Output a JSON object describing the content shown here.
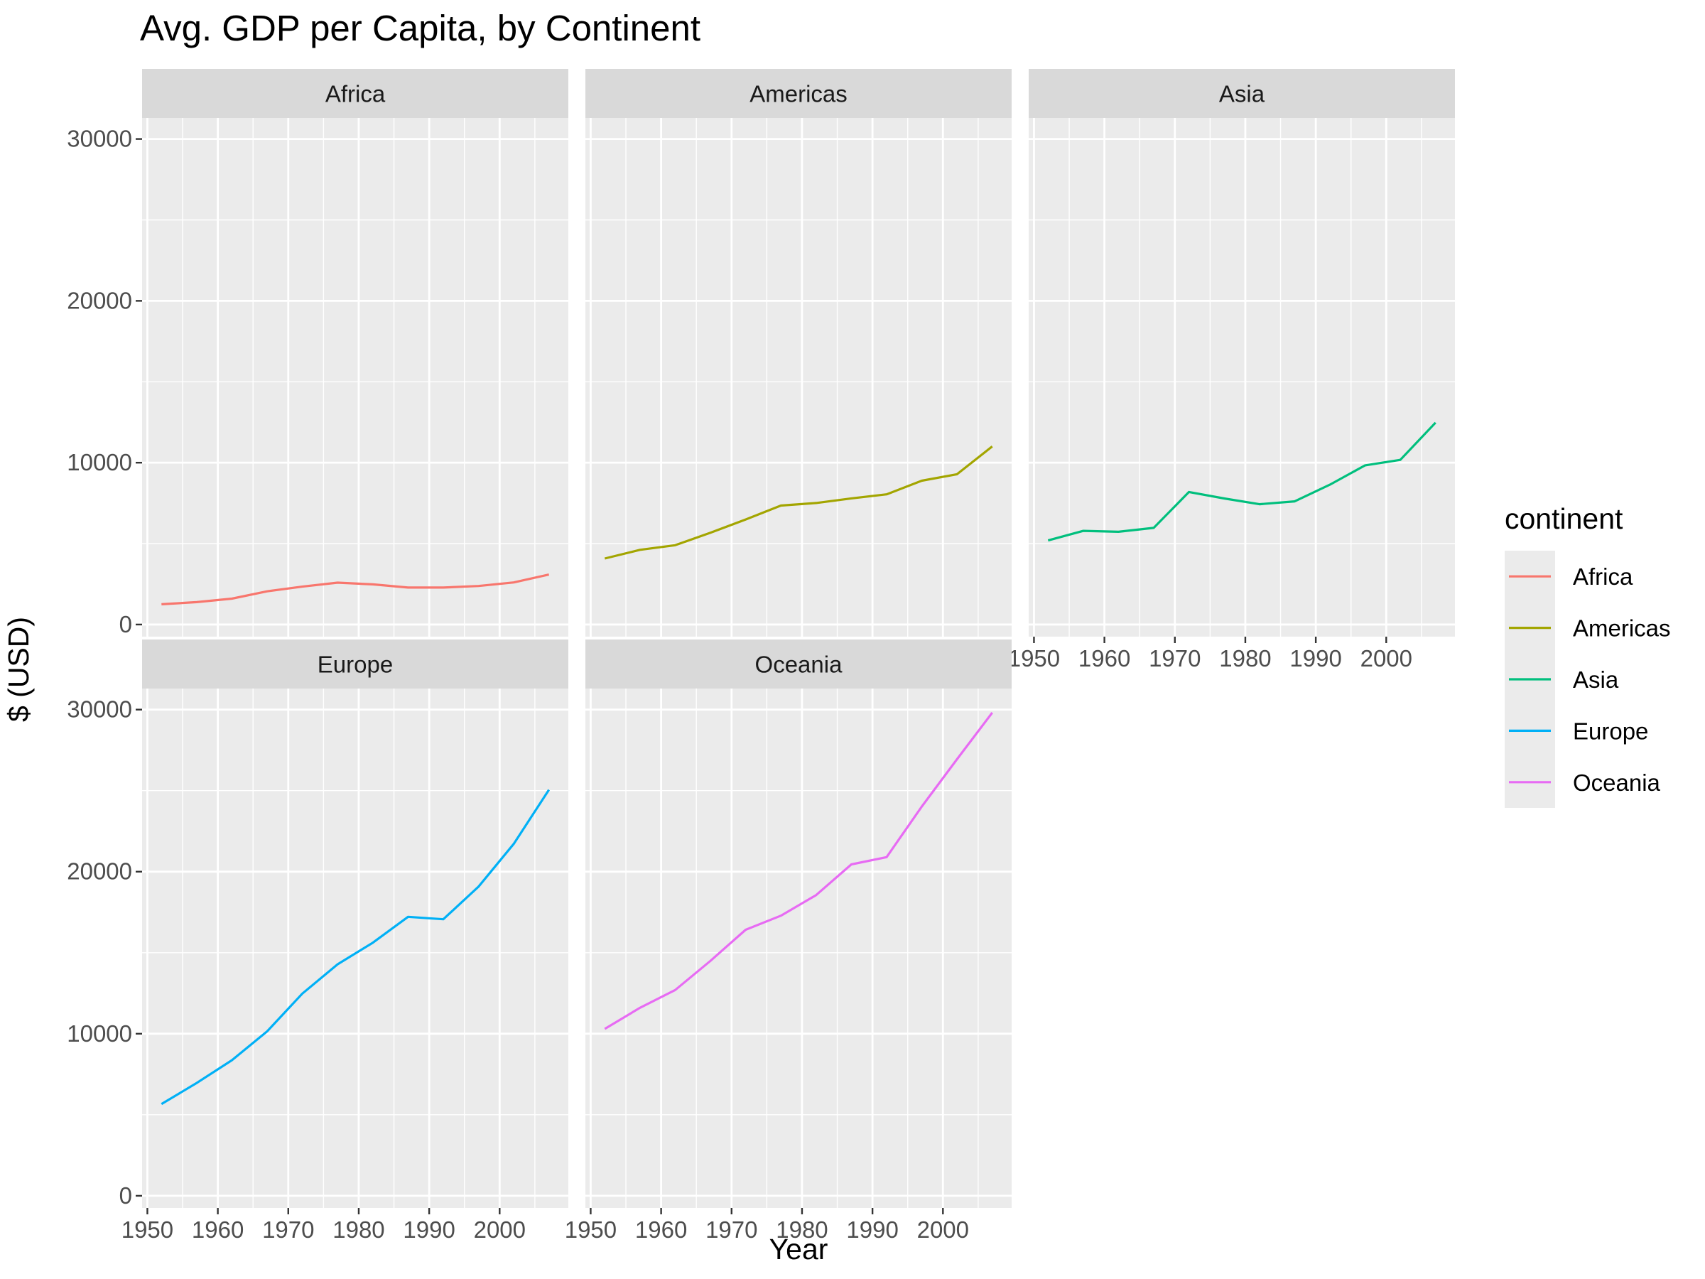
{
  "chart_data": {
    "type": "line",
    "title": "Avg. GDP per Capita, by Continent",
    "xlabel": "Year",
    "ylabel": "$ (USD)",
    "xlim": [
      1950,
      2010
    ],
    "ylim": [
      0,
      30000
    ],
    "x_ticks": [
      "1950",
      "1960",
      "1970",
      "1980",
      "1990",
      "2000"
    ],
    "y_ticks": [
      "0",
      "10000",
      "20000",
      "30000"
    ],
    "grid": true,
    "legend_title": "continent",
    "legend_position": "right",
    "x": [
      1952,
      1957,
      1962,
      1967,
      1972,
      1977,
      1982,
      1987,
      1992,
      1997,
      2002,
      2007
    ],
    "series": [
      {
        "name": "Africa",
        "color": "#F8766D",
        "values": [
          1253,
          1385,
          1598,
          2050,
          2340,
          2586,
          2482,
          2283,
          2282,
          2379,
          2599,
          3089
        ]
      },
      {
        "name": "Americas",
        "color": "#A3A500",
        "values": [
          4079,
          4616,
          4902,
          5668,
          6491,
          7352,
          7507,
          7793,
          8045,
          8889,
          9288,
          11003
        ]
      },
      {
        "name": "Asia",
        "color": "#00BF7D",
        "values": [
          5195,
          5788,
          5729,
          5971,
          8187,
          7791,
          7434,
          7608,
          8640,
          9834,
          10174,
          12473
        ]
      },
      {
        "name": "Europe",
        "color": "#00B0F6",
        "values": [
          5661,
          6963,
          8365,
          10144,
          12480,
          14284,
          15618,
          17214,
          17062,
          19077,
          21712,
          25054
        ]
      },
      {
        "name": "Oceania",
        "color": "#E76BF3",
        "values": [
          10298,
          11599,
          12696,
          14496,
          16417,
          17284,
          18555,
          20448,
          20894,
          24024,
          26939,
          29810
        ]
      }
    ]
  }
}
